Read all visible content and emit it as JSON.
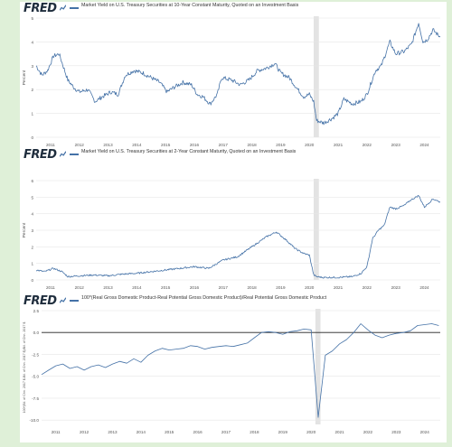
{
  "brand": "FRED",
  "colors": {
    "line": "#4572a7",
    "recession": "#e3e3e3",
    "grid": "#e6e6e6",
    "background": "#dff0d8"
  },
  "chart_data": [
    {
      "type": "line",
      "title": "Market Yield on U.S. Treasury Securities at 10-Year Constant Maturity, Quoted on an Investment Basis",
      "ylabel": "Percent",
      "xlim": [
        2010.5,
        2024.55
      ],
      "ylim": [
        0,
        5
      ],
      "yticks": [
        0,
        1,
        2,
        3,
        4,
        5
      ],
      "ytick_labels": [
        "0",
        "1",
        "2",
        "3",
        "4",
        "5"
      ],
      "xticks": [
        "2011",
        "2012",
        "2013",
        "2014",
        "2015",
        "2016",
        "2017",
        "2018",
        "2019",
        "2020",
        "2021",
        "2022",
        "2023",
        "2024"
      ],
      "recession": [
        2020.15,
        2020.33
      ],
      "noise": 0.09,
      "series": [
        {
          "x": [
            2010.5,
            2010.7,
            2010.9,
            2011.1,
            2011.3,
            2011.6,
            2011.8,
            2012.0,
            2012.3,
            2012.55,
            2012.8,
            2013.1,
            2013.35,
            2013.6,
            2013.9,
            2014.2,
            2014.5,
            2014.8,
            2015.05,
            2015.3,
            2015.6,
            2015.9,
            2016.1,
            2016.3,
            2016.55,
            2016.8,
            2016.95,
            2017.3,
            2017.6,
            2017.9,
            2018.2,
            2018.5,
            2018.8,
            2019.0,
            2019.3,
            2019.6,
            2019.8,
            2020.0,
            2020.15,
            2020.25,
            2020.5,
            2020.8,
            2021.0,
            2021.2,
            2021.5,
            2021.8,
            2022.0,
            2022.3,
            2022.5,
            2022.8,
            2023.0,
            2023.3,
            2023.55,
            2023.8,
            2023.95,
            2024.1,
            2024.3,
            2024.55
          ],
          "y": [
            3.0,
            2.6,
            2.8,
            3.4,
            3.5,
            2.4,
            2.1,
            1.9,
            2.0,
            1.5,
            1.7,
            1.9,
            1.8,
            2.6,
            2.8,
            2.7,
            2.5,
            2.3,
            1.9,
            2.1,
            2.3,
            2.2,
            1.8,
            1.7,
            1.4,
            1.8,
            2.5,
            2.4,
            2.2,
            2.4,
            2.8,
            2.9,
            3.1,
            2.7,
            2.5,
            2.0,
            1.7,
            1.8,
            1.5,
            0.7,
            0.6,
            0.8,
            1.0,
            1.6,
            1.4,
            1.5,
            1.8,
            2.8,
            3.0,
            4.0,
            3.5,
            3.6,
            3.9,
            4.8,
            4.0,
            4.1,
            4.5,
            4.2
          ]
        }
      ]
    },
    {
      "type": "line",
      "title": "Market Yield on U.S. Treasury Securities at 2-Year Constant Maturity, Quoted on an Investment Basis",
      "ylabel": "Percent",
      "xlim": [
        2010.5,
        2024.55
      ],
      "ylim": [
        0,
        6
      ],
      "yticks": [
        0,
        1,
        2,
        3,
        4,
        5,
        6
      ],
      "ytick_labels": [
        "0",
        "1",
        "2",
        "3",
        "4",
        "5",
        "6"
      ],
      "xticks": [
        "2011",
        "2012",
        "2013",
        "2014",
        "2015",
        "2016",
        "2017",
        "2018",
        "2019",
        "2020",
        "2021",
        "2022",
        "2023",
        "2024"
      ],
      "recession": [
        2020.15,
        2020.33
      ],
      "noise": 0.05,
      "series": [
        {
          "x": [
            2010.5,
            2010.8,
            2011.1,
            2011.4,
            2011.6,
            2012.0,
            2012.5,
            2013.0,
            2013.5,
            2014.0,
            2014.5,
            2015.0,
            2015.5,
            2016.0,
            2016.5,
            2017.0,
            2017.5,
            2018.0,
            2018.5,
            2018.85,
            2019.2,
            2019.5,
            2019.8,
            2020.0,
            2020.15,
            2020.25,
            2020.5,
            2021.0,
            2021.5,
            2021.8,
            2022.0,
            2022.2,
            2022.4,
            2022.6,
            2022.8,
            2023.0,
            2023.3,
            2023.5,
            2023.8,
            2024.0,
            2024.3,
            2024.55
          ],
          "y": [
            0.6,
            0.5,
            0.7,
            0.5,
            0.2,
            0.25,
            0.3,
            0.25,
            0.35,
            0.4,
            0.5,
            0.6,
            0.7,
            0.8,
            0.7,
            1.2,
            1.4,
            2.0,
            2.6,
            2.9,
            2.4,
            1.9,
            1.6,
            1.5,
            0.3,
            0.2,
            0.15,
            0.15,
            0.2,
            0.4,
            0.8,
            2.5,
            3.0,
            3.3,
            4.4,
            4.3,
            4.5,
            4.8,
            5.1,
            4.4,
            4.9,
            4.7
          ]
        }
      ]
    },
    {
      "type": "line",
      "title": "100*(Real Gross Domestic Product-Real Potential Gross Domestic Product)/Real Potential Gross Domestic Product",
      "ylabel": "100*(Bil. of Chn. 2017 $-Bil. of Chn. 2017 $)/Bil. of Chn. 2017 $",
      "xlim": [
        2010.5,
        2024.55
      ],
      "ylim": [
        -10.5,
        2.5
      ],
      "yticks": [
        2.5,
        0.0,
        -2.5,
        -5.0,
        -7.5,
        -10.0
      ],
      "ytick_labels": [
        "2.5",
        "0.0",
        "-2.5",
        "-5.0",
        "-7.5",
        "-10.0"
      ],
      "xticks": [
        "2011",
        "2012",
        "2013",
        "2014",
        "2015",
        "2016",
        "2017",
        "2018",
        "2019",
        "2020",
        "2021",
        "2022",
        "2023",
        "2024"
      ],
      "recession": [
        2020.15,
        2020.33
      ],
      "zero_line": true,
      "noise": 0,
      "series": [
        {
          "x": [
            2010.5,
            2010.75,
            2011.0,
            2011.25,
            2011.5,
            2011.75,
            2012.0,
            2012.25,
            2012.5,
            2012.75,
            2013.0,
            2013.25,
            2013.5,
            2013.75,
            2014.0,
            2014.25,
            2014.5,
            2014.75,
            2015.0,
            2015.25,
            2015.5,
            2015.75,
            2016.0,
            2016.25,
            2016.5,
            2016.75,
            2017.0,
            2017.25,
            2017.5,
            2017.75,
            2018.0,
            2018.25,
            2018.5,
            2018.75,
            2019.0,
            2019.25,
            2019.5,
            2019.75,
            2020.0,
            2020.25,
            2020.5,
            2020.75,
            2021.0,
            2021.25,
            2021.5,
            2021.75,
            2022.0,
            2022.25,
            2022.5,
            2022.75,
            2023.0,
            2023.25,
            2023.5,
            2023.75,
            2024.0,
            2024.25,
            2024.5
          ],
          "y": [
            -4.8,
            -4.3,
            -3.8,
            -3.6,
            -4.1,
            -3.9,
            -4.3,
            -3.9,
            -3.7,
            -4.0,
            -3.6,
            -3.3,
            -3.5,
            -3.0,
            -3.4,
            -2.6,
            -2.1,
            -1.8,
            -2.0,
            -1.9,
            -1.8,
            -1.5,
            -1.6,
            -1.9,
            -1.7,
            -1.6,
            -1.5,
            -1.6,
            -1.4,
            -1.2,
            -0.6,
            0.0,
            0.1,
            0.0,
            -0.2,
            0.1,
            0.2,
            0.4,
            0.3,
            -9.7,
            -2.6,
            -2.1,
            -1.3,
            -0.8,
            0.0,
            1.0,
            0.3,
            -0.3,
            -0.6,
            -0.3,
            -0.1,
            0.0,
            0.2,
            0.8,
            0.9,
            1.0,
            0.8
          ]
        }
      ]
    }
  ]
}
